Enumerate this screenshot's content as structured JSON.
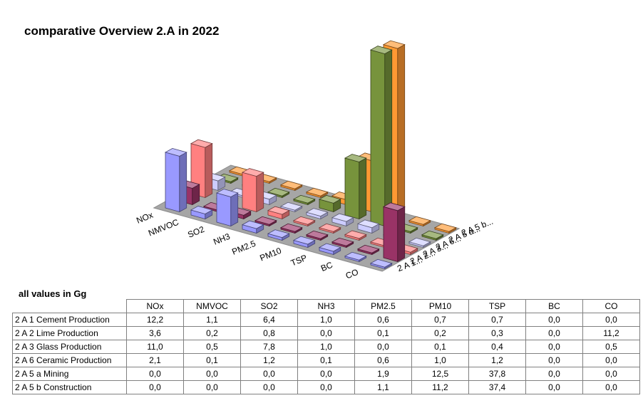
{
  "chart_data": {
    "type": "bar3d",
    "title": "comparative Overview 2.A in 2022",
    "unit_note": "all values in Gg",
    "categories": [
      "NOx",
      "NMVOC",
      "SO2",
      "NH3",
      "PM2.5",
      "PM10",
      "TSP",
      "BC",
      "CO"
    ],
    "series": [
      {
        "name": "2 A 1 Cement Production",
        "axis_label": "2 A 1...",
        "values": [
          "12,2",
          "1,1",
          "6,4",
          "1,0",
          "0,6",
          "0,7",
          "0,7",
          "0,0",
          "0,0"
        ]
      },
      {
        "name": "2 A 2 Lime Production",
        "axis_label": "2 A 2...",
        "values": [
          "3,6",
          "0,2",
          "0,8",
          "0,0",
          "0,1",
          "0,2",
          "0,3",
          "0,0",
          "11,2"
        ]
      },
      {
        "name": "2 A 3 Glass Production",
        "axis_label": "2 A 3...",
        "values": [
          "11,0",
          "0,5",
          "7,8",
          "1,0",
          "0,0",
          "0,1",
          "0,4",
          "0,0",
          "0,5"
        ]
      },
      {
        "name": "2 A 6 Ceramic Production",
        "axis_label": "2 A 6...",
        "values": [
          "2,1",
          "0,1",
          "1,2",
          "0,1",
          "0,6",
          "1,0",
          "1,2",
          "0,0",
          "0,0"
        ]
      },
      {
        "name": "2 A 5 a Mining",
        "axis_label": "2 A 5 a...",
        "values": [
          "0,0",
          "0,0",
          "0,0",
          "0,0",
          "1,9",
          "12,5",
          "37,8",
          "0,0",
          "0,0"
        ]
      },
      {
        "name": "2 A 5 b Construction",
        "axis_label": "2 A 5 b...",
        "values": [
          "0,0",
          "0,0",
          "0,0",
          "0,0",
          "1,1",
          "11,2",
          "37,4",
          "0,0",
          "0,0"
        ]
      }
    ],
    "colors": [
      "#9999ff",
      "#993366",
      "#ff8080",
      "#ccccff",
      "#77933c",
      "#ff9933"
    ]
  }
}
